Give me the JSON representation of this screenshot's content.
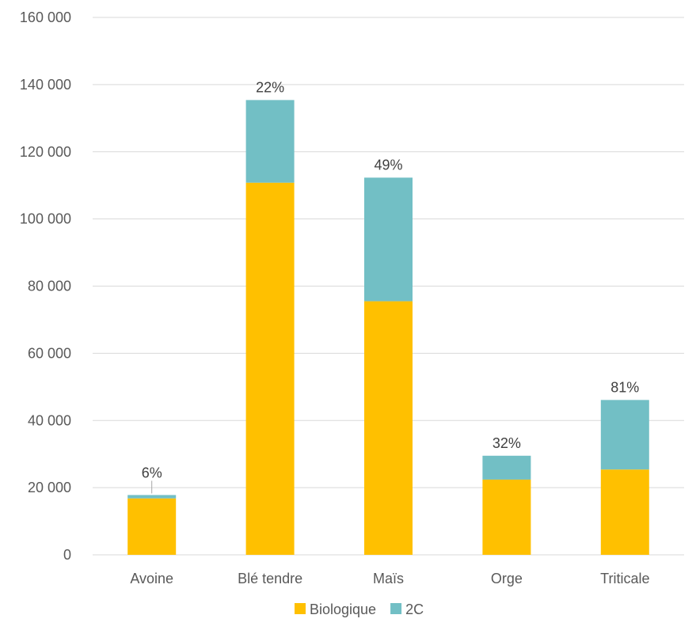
{
  "chart_data": {
    "type": "bar",
    "stacked": true,
    "categories": [
      "Avoine",
      "Blé tendre",
      "Maïs",
      "Orge",
      "Triticale"
    ],
    "series": [
      {
        "name": "Biologique",
        "color": "#FFC000",
        "values": [
          16800,
          110800,
          75500,
          22400,
          25400
        ]
      },
      {
        "name": "2C",
        "color": "#72BFC5",
        "values": [
          1000,
          24600,
          36800,
          7100,
          20700
        ]
      }
    ],
    "data_labels": [
      "6%",
      "22%",
      "49%",
      "32%",
      "81%"
    ],
    "ylim": [
      0,
      160000
    ],
    "yticks": [
      0,
      20000,
      40000,
      60000,
      80000,
      100000,
      120000,
      140000,
      160000
    ],
    "ytick_labels": [
      "0",
      "20 000",
      "40 000",
      "60 000",
      "80 000",
      "100 000",
      "120 000",
      "140 000",
      "160 000"
    ],
    "grid": true,
    "legend_position": "bottom"
  }
}
